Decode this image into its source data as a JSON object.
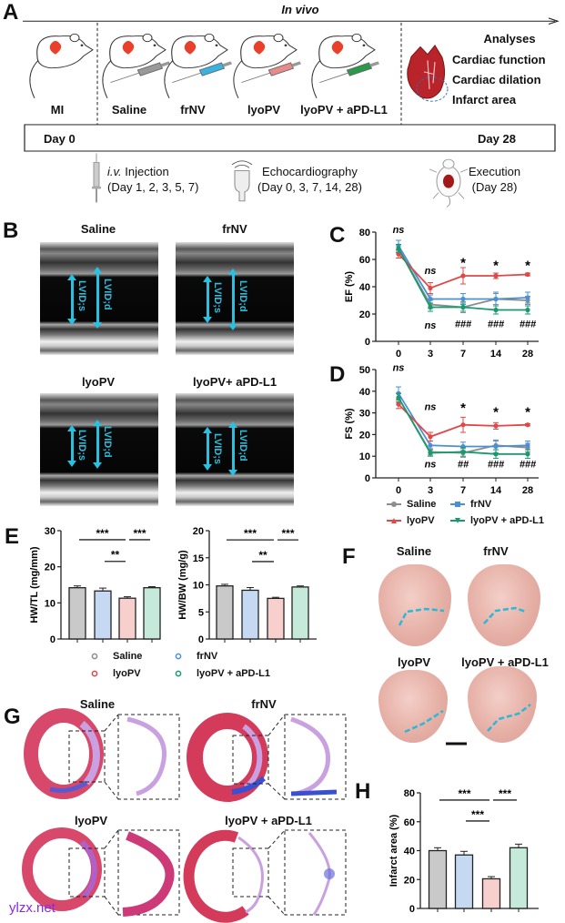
{
  "panel_labels": {
    "a": "A",
    "b": "B",
    "c": "C",
    "d": "D",
    "e": "E",
    "f": "F",
    "g": "G",
    "h": "H"
  },
  "colors": {
    "saline": "#8c8c8c",
    "frnv": "#4a90d9",
    "lyopv": "#e04848",
    "combo": "#1a9a6c",
    "lvid_arrow": "#2ac0e0",
    "watermark": "#8a2be2"
  },
  "panel_a": {
    "title": "In vivo",
    "groups": [
      "MI",
      "Saline",
      "frNV",
      "lyoPV",
      "lyoPV + aPD-L1"
    ],
    "syringe_colors": [
      "#999999",
      "#3bb3e0",
      "#e88a8a",
      "#2a9a4a"
    ],
    "analyses": {
      "title": "Analyses",
      "items": [
        "Cardiac function",
        "Cardiac dilation",
        "Infarct area"
      ]
    },
    "timeline": {
      "start": "Day 0",
      "end": "Day 28"
    },
    "steps": [
      {
        "icon": "syringe-icon",
        "italic": "i.v.",
        "label": " Injection",
        "detail": "(Day 1, 2, 3, 5, 7)"
      },
      {
        "icon": "ultrasound-probe-icon",
        "label": "Echocardiography",
        "detail": "(Day 0, 3, 7, 14, 28)"
      },
      {
        "icon": "dissected-mouse-icon",
        "label": "Execution",
        "detail": "(Day 28)"
      }
    ]
  },
  "panel_b": {
    "images": [
      {
        "label": "Saline",
        "lvids": "LVID;s",
        "lvidd": "LVID;d"
      },
      {
        "label": "frNV",
        "lvids": "LVID;s",
        "lvidd": "LVID;d"
      },
      {
        "label": "lyoPV",
        "lvids": "LVID;s",
        "lvidd": "LVID;d"
      },
      {
        "label": "lyoPV+ aPD-L1",
        "lvids": "LVID;s",
        "lvidd": "LVID;d"
      }
    ]
  },
  "legend_cd": [
    "Saline",
    "frNV",
    "lyoPV",
    "lyoPV + aPD-L1"
  ],
  "legend_e": [
    "Saline",
    "frNV",
    "lyoPV",
    "lyoPV + aPD-L1"
  ],
  "panel_f": {
    "labels": [
      "Saline",
      "frNV",
      "lyoPV",
      "lyoPV + aPD-L1"
    ]
  },
  "panel_g": {
    "labels": [
      "Saline",
      "frNV",
      "lyoPV",
      "lyoPV + aPD-L1"
    ]
  },
  "watermark": "ylzx.net",
  "chart_data": [
    {
      "id": "c",
      "type": "line",
      "ylabel": "EF (%)",
      "xlabel": "",
      "x": [
        "0",
        "3",
        "7",
        "14",
        "28"
      ],
      "ylim": [
        0,
        80
      ],
      "yticks": [
        "0",
        "20",
        "40",
        "60",
        "80"
      ],
      "series": [
        {
          "name": "Saline",
          "color": "#8c8c8c",
          "values": [
            68,
            27,
            25,
            31,
            30
          ],
          "error": [
            3,
            3,
            4,
            4,
            3
          ]
        },
        {
          "name": "frNV",
          "color": "#4a90d9",
          "values": [
            70,
            31,
            31,
            31,
            32
          ],
          "error": [
            4,
            3,
            4,
            5,
            4
          ]
        },
        {
          "name": "lyoPV",
          "color": "#e04848",
          "values": [
            64,
            39,
            48,
            48,
            49
          ],
          "error": [
            3,
            4,
            6,
            2,
            1
          ]
        },
        {
          "name": "lyoPV + aPD-L1",
          "color": "#1a9a6c",
          "values": [
            68,
            25,
            25,
            23,
            23
          ],
          "error": [
            3,
            3,
            3,
            3,
            3
          ]
        }
      ],
      "annotations": [
        {
          "x": 0,
          "y": 82,
          "text": "ns",
          "italic": true
        },
        {
          "x": 1,
          "y": 52,
          "text": "ns",
          "italic": true
        },
        {
          "x": 2,
          "y": 57,
          "text": "*"
        },
        {
          "x": 3,
          "y": 55,
          "text": "*"
        },
        {
          "x": 4,
          "y": 55,
          "text": "*"
        },
        {
          "x": 1,
          "y": 12,
          "text": "ns",
          "italic": true
        },
        {
          "x": 2,
          "y": 13,
          "text": "###",
          "italic": true
        },
        {
          "x": 3,
          "y": 13,
          "text": "###",
          "italic": true
        },
        {
          "x": 4,
          "y": 13,
          "text": "###",
          "italic": true
        }
      ]
    },
    {
      "id": "d",
      "type": "line",
      "ylabel": "FS (%)",
      "xlabel": "",
      "x": [
        "0",
        "3",
        "7",
        "14",
        "28"
      ],
      "ylim": [
        0,
        50
      ],
      "yticks": [
        "0",
        "10",
        "20",
        "30",
        "40",
        "50"
      ],
      "series": [
        {
          "name": "Saline",
          "color": "#8c8c8c",
          "values": [
            37,
            12,
            11.5,
            15,
            14
          ],
          "error": [
            2,
            1.5,
            2,
            2,
            2
          ]
        },
        {
          "name": "frNV",
          "color": "#4a90d9",
          "values": [
            39,
            15,
            14.5,
            14.5,
            15
          ],
          "error": [
            3,
            2,
            2,
            3,
            2
          ]
        },
        {
          "name": "lyoPV",
          "color": "#e04848",
          "values": [
            34,
            19,
            24.5,
            24,
            24.5
          ],
          "error": [
            2,
            2,
            3.5,
            1.5,
            0.5
          ]
        },
        {
          "name": "lyoPV + aPD-L1",
          "color": "#1a9a6c",
          "values": [
            37,
            11.5,
            12,
            11,
            11
          ],
          "error": [
            2,
            1.5,
            2,
            2,
            2
          ]
        }
      ],
      "annotations": [
        {
          "x": 0,
          "y": 51,
          "text": "ns",
          "italic": true
        },
        {
          "x": 1,
          "y": 33,
          "text": "ns",
          "italic": true
        },
        {
          "x": 2,
          "y": 32,
          "text": "*"
        },
        {
          "x": 3,
          "y": 30,
          "text": "*"
        },
        {
          "x": 4,
          "y": 30,
          "text": "*"
        },
        {
          "x": 1,
          "y": 6.5,
          "text": "ns",
          "italic": true
        },
        {
          "x": 2,
          "y": 6.5,
          "text": "##",
          "italic": true
        },
        {
          "x": 3,
          "y": 6.5,
          "text": "###",
          "italic": true
        },
        {
          "x": 4,
          "y": 6.5,
          "text": "###",
          "italic": true
        }
      ]
    },
    {
      "id": "e1",
      "type": "bar",
      "ylabel": "HW/TL (mg/mm)",
      "categories": [
        "Saline",
        "frNV",
        "lyoPV",
        "lyoPV + aPD-L1"
      ],
      "values": [
        14.2,
        13.3,
        11.3,
        14.2
      ],
      "error": [
        0.5,
        0.8,
        0.4,
        0.3
      ],
      "ylim": [
        0,
        30
      ],
      "yticks": [
        "0",
        "10",
        "20",
        "30"
      ],
      "significance": [
        {
          "from": 0,
          "to": 2,
          "y": 27.5,
          "text": "***"
        },
        {
          "from": 2,
          "to": 3,
          "y": 27.5,
          "text": "***"
        },
        {
          "from": 1,
          "to": 2,
          "y": 21.5,
          "text": "**"
        }
      ]
    },
    {
      "id": "e2",
      "type": "bar",
      "ylabel": "HW/BW (mg/g)",
      "categories": [
        "Saline",
        "frNV",
        "lyoPV",
        "lyoPV + aPD-L1"
      ],
      "values": [
        9.8,
        9.0,
        7.5,
        9.6
      ],
      "error": [
        0.3,
        0.5,
        0.2,
        0.2
      ],
      "ylim": [
        0,
        20
      ],
      "yticks": [
        "0",
        "5",
        "10",
        "15",
        "20"
      ],
      "significance": [
        {
          "from": 0,
          "to": 2,
          "y": 18.3,
          "text": "***"
        },
        {
          "from": 2,
          "to": 3,
          "y": 18.3,
          "text": "***"
        },
        {
          "from": 1,
          "to": 2,
          "y": 14.3,
          "text": "**"
        }
      ]
    },
    {
      "id": "h",
      "type": "bar",
      "ylabel": "Infarct area (%)",
      "categories": [
        "Saline",
        "frNV",
        "lyoPV",
        "lyoPV + aPD-L1"
      ],
      "values": [
        40,
        37,
        20.5,
        42
      ],
      "error": [
        2,
        2.5,
        1.5,
        2.5
      ],
      "ylim": [
        0,
        80
      ],
      "yticks": [
        "0",
        "20",
        "40",
        "60",
        "80"
      ],
      "significance": [
        {
          "from": 0,
          "to": 2,
          "y": 75,
          "text": "***"
        },
        {
          "from": 2,
          "to": 3,
          "y": 75,
          "text": "***"
        },
        {
          "from": 1,
          "to": 2,
          "y": 60.5,
          "text": "***"
        }
      ]
    }
  ]
}
